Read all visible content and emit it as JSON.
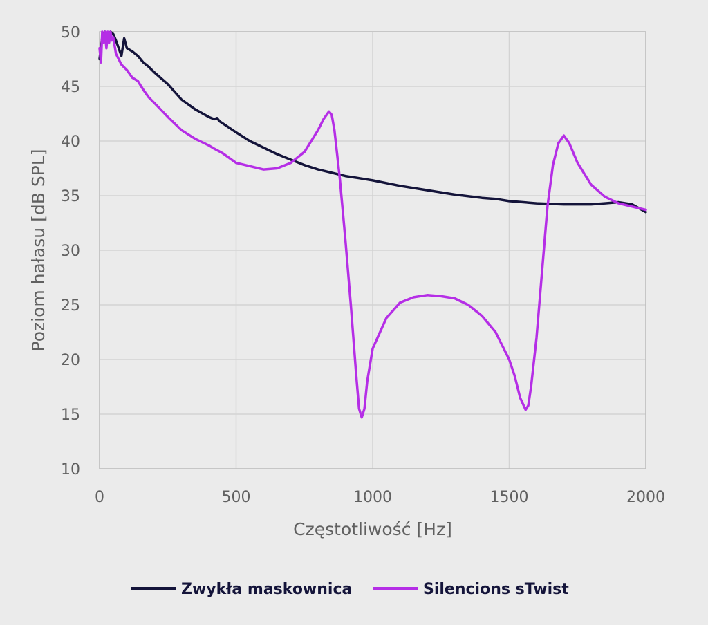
{
  "chart_data": {
    "type": "line",
    "title": "",
    "xlabel": "Częstotliwość [Hz]",
    "ylabel": "Poziom hałasu [dB SPL]",
    "xlim": [
      0,
      2000
    ],
    "ylim": [
      10,
      50
    ],
    "x_ticks": [
      0,
      500,
      1000,
      1500,
      2000
    ],
    "y_ticks": [
      10,
      15,
      20,
      25,
      30,
      35,
      40,
      45,
      50
    ],
    "grid": true,
    "legend_position": "bottom",
    "series": [
      {
        "name": "Zwykła maskownica",
        "color": "#14143a",
        "x": [
          0,
          10,
          20,
          30,
          40,
          50,
          60,
          70,
          80,
          90,
          100,
          120,
          140,
          160,
          180,
          200,
          250,
          300,
          350,
          400,
          420,
          430,
          440,
          500,
          550,
          600,
          650,
          700,
          750,
          800,
          850,
          900,
          950,
          1000,
          1100,
          1200,
          1300,
          1400,
          1450,
          1500,
          1600,
          1700,
          1800,
          1850,
          1900,
          1950,
          2000
        ],
        "y": [
          47.5,
          49.5,
          50,
          49.5,
          50,
          49.8,
          49.2,
          48.5,
          47.8,
          49.4,
          48.5,
          48.2,
          47.8,
          47.2,
          46.8,
          46.3,
          45.2,
          43.8,
          42.9,
          42.2,
          42.0,
          42.1,
          41.8,
          40.8,
          40.0,
          39.4,
          38.8,
          38.3,
          37.8,
          37.4,
          37.1,
          36.8,
          36.6,
          36.4,
          35.9,
          35.5,
          35.1,
          34.8,
          34.7,
          34.5,
          34.3,
          34.2,
          34.2,
          34.3,
          34.4,
          34.2,
          33.5
        ]
      },
      {
        "name": "Silencions sTwist",
        "color": "#b52ee6",
        "x": [
          0,
          5,
          10,
          15,
          20,
          25,
          30,
          35,
          40,
          45,
          50,
          60,
          80,
          100,
          120,
          140,
          160,
          180,
          200,
          250,
          300,
          350,
          400,
          420,
          450,
          500,
          550,
          600,
          650,
          700,
          750,
          800,
          820,
          840,
          850,
          860,
          870,
          880,
          900,
          920,
          940,
          950,
          960,
          970,
          980,
          1000,
          1050,
          1100,
          1150,
          1200,
          1250,
          1300,
          1350,
          1400,
          1450,
          1500,
          1520,
          1540,
          1560,
          1570,
          1580,
          1600,
          1620,
          1640,
          1660,
          1680,
          1700,
          1720,
          1750,
          1800,
          1850,
          1900,
          1950,
          2000
        ],
        "y": [
          48.5,
          47.2,
          50,
          49,
          50,
          48.5,
          50,
          49,
          50,
          49.2,
          49.5,
          48.0,
          47.0,
          46.5,
          45.8,
          45.5,
          44.7,
          44.0,
          43.5,
          42.2,
          41.0,
          40.2,
          39.6,
          39.3,
          38.9,
          38.0,
          37.7,
          37.4,
          37.5,
          38.0,
          39.0,
          41.0,
          42.0,
          42.7,
          42.4,
          41.0,
          38.8,
          36.5,
          31.0,
          25.0,
          18.5,
          15.5,
          14.7,
          15.5,
          18.0,
          21.0,
          23.8,
          25.2,
          25.7,
          25.9,
          25.8,
          25.6,
          25.0,
          24.0,
          22.5,
          20.0,
          18.5,
          16.5,
          15.4,
          15.8,
          17.5,
          22.0,
          28.0,
          34.0,
          37.8,
          39.8,
          40.5,
          39.8,
          38.0,
          36.0,
          34.9,
          34.3,
          34.0,
          33.7
        ]
      }
    ]
  }
}
